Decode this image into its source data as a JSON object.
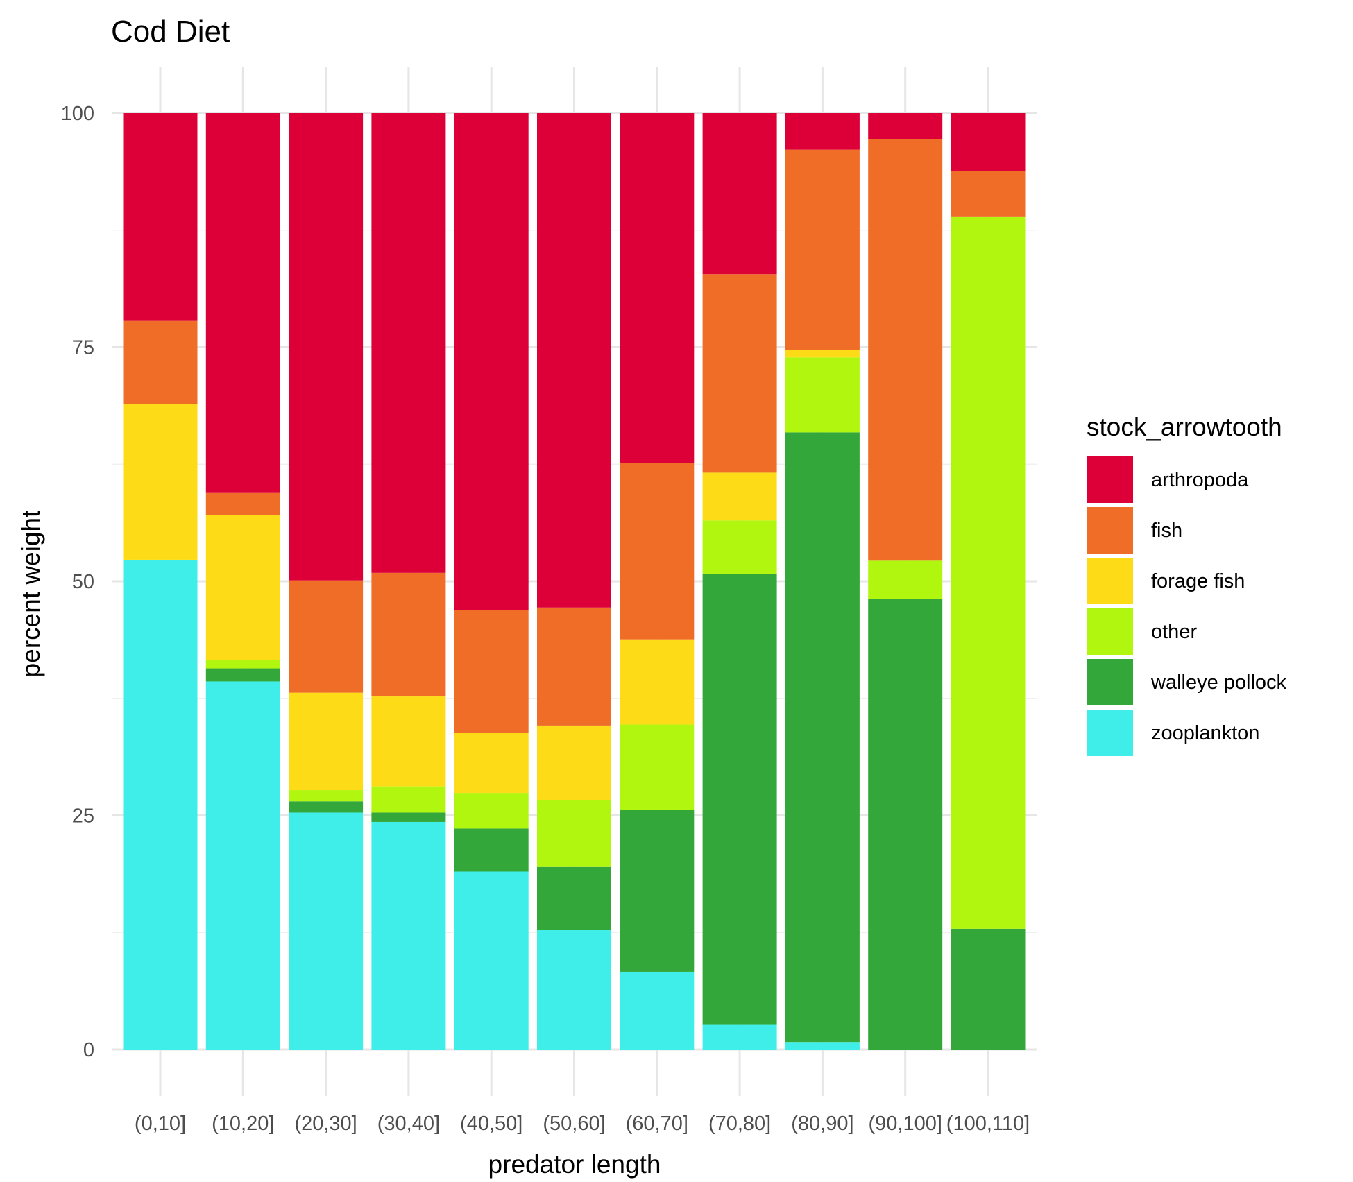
{
  "chart_data": {
    "type": "bar",
    "stacked": true,
    "title": "Cod Diet",
    "xlabel": "predator length",
    "ylabel": "percent weight",
    "ylim": [
      0,
      100
    ],
    "yticks": [
      0,
      25,
      50,
      75,
      100
    ],
    "grid": true,
    "legend": {
      "title": "stock_arrowtooth",
      "position": "right"
    },
    "categories": [
      "(0,10]",
      "(10,20]",
      "(20,30]",
      "(30,40]",
      "(40,50]",
      "(50,60]",
      "(60,70]",
      "(70,80]",
      "(80,90]",
      "(90,100]",
      "(100,110]"
    ],
    "series": [
      {
        "name": "zooplankton",
        "color": "#40EEE9",
        "values": [
          52.3,
          39.3,
          25.3,
          24.3,
          19.0,
          12.8,
          8.3,
          2.7,
          0.8,
          0.0,
          0.0
        ]
      },
      {
        "name": "walleye pollock",
        "color": "#33A73A",
        "values": [
          0.0,
          1.4,
          1.2,
          1.0,
          4.6,
          6.7,
          17.3,
          48.1,
          65.1,
          48.1,
          12.9
        ]
      },
      {
        "name": "other",
        "color": "#B0F60F",
        "values": [
          0.0,
          0.9,
          1.2,
          2.8,
          3.8,
          7.1,
          9.1,
          5.7,
          8.0,
          4.1,
          76.0
        ]
      },
      {
        "name": "forage fish",
        "color": "#FDDC17",
        "values": [
          16.6,
          15.5,
          10.4,
          9.6,
          6.4,
          8.0,
          9.1,
          5.1,
          0.8,
          0.0,
          0.0
        ]
      },
      {
        "name": "fish",
        "color": "#EF6D27",
        "values": [
          8.9,
          2.4,
          12.0,
          13.2,
          13.1,
          12.6,
          18.8,
          21.2,
          21.4,
          45.0,
          4.9
        ]
      },
      {
        "name": "arthropoda",
        "color": "#DD0038",
        "values": [
          22.2,
          40.5,
          49.9,
          49.1,
          53.1,
          52.8,
          37.4,
          17.2,
          3.9,
          2.8,
          6.2
        ]
      }
    ],
    "legend_order": [
      "arthropoda",
      "fish",
      "forage fish",
      "other",
      "walleye pollock",
      "zooplankton"
    ]
  }
}
